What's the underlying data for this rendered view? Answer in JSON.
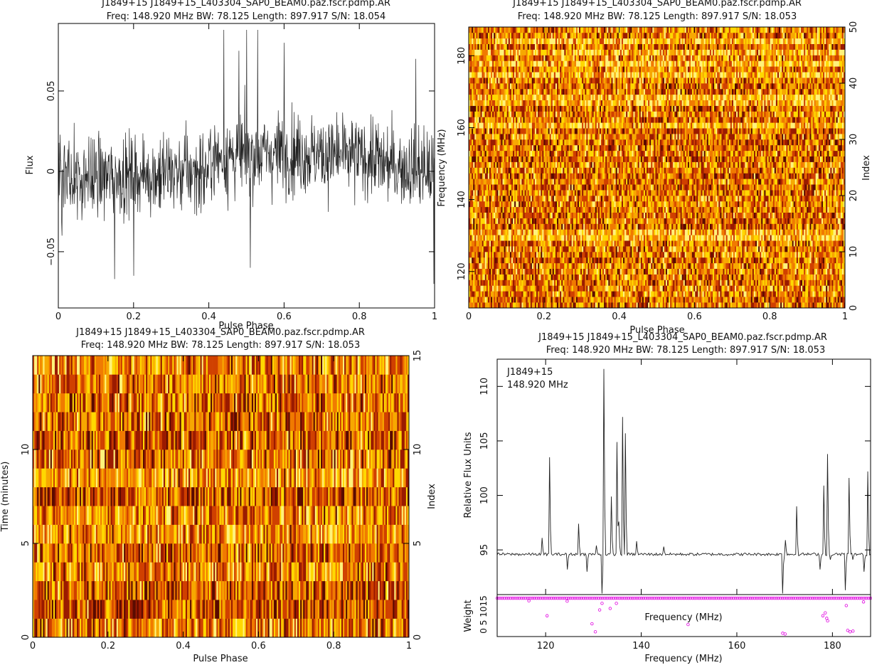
{
  "chart_data": [
    {
      "id": "profile",
      "type": "line",
      "title": "J1849+15 J1849+15_L403304_SAP0_BEAM0.paz.fscr.pdmp.AR",
      "subtitle": "Freq: 148.920 MHz BW: 78.125 Length: 897.917 S/N: 18.054",
      "xlabel": "Pulse Phase",
      "ylabel": "Flux",
      "xlim": [
        0,
        1
      ],
      "ylim": [
        -0.085,
        0.092
      ],
      "xticks": [
        0,
        0.2,
        0.4,
        0.6,
        0.8,
        1
      ],
      "xtick_labels": [
        "0",
        "0.2",
        "0.4",
        "0.6",
        "0.8",
        "1"
      ],
      "yticks": [
        -0.05,
        0,
        0.05
      ],
      "ytick_labels": [
        "−0.05",
        "0",
        "0.05"
      ],
      "series": [
        {
          "n_bins": 1024,
          "baseline_segments": [
            {
              "x": [
                0,
                0.4
              ],
              "y": [
                -0.005,
                0.0
              ]
            },
            {
              "x": [
                0.4,
                0.6
              ],
              "y": [
                0.008,
                0.012
              ]
            },
            {
              "x": [
                0.6,
                0.85
              ],
              "y": [
                0.012,
                0.008
              ]
            },
            {
              "x": [
                0.85,
                1.0
              ],
              "y": [
                0.005,
                0.0
              ]
            }
          ],
          "noise_rms": 0.022,
          "extremes": [
            {
              "x": 0.01,
              "y": -0.04
            },
            {
              "x": 0.15,
              "y": -0.067
            },
            {
              "x": 0.2,
              "y": -0.065
            },
            {
              "x": 0.44,
              "y": 0.088
            },
            {
              "x": 0.48,
              "y": 0.075
            },
            {
              "x": 0.5,
              "y": 0.088
            },
            {
              "x": 0.51,
              "y": -0.06
            },
            {
              "x": 0.53,
              "y": 0.088
            },
            {
              "x": 0.6,
              "y": 0.08
            },
            {
              "x": 0.95,
              "y": 0.07
            },
            {
              "x": 0.998,
              "y": -0.07
            }
          ]
        }
      ]
    },
    {
      "id": "freq-phase",
      "type": "heatmap",
      "title": "J1849+15 J1849+15_L403304_SAP0_BEAM0.paz.fscr.pdmp.AR",
      "subtitle": "Freq: 148.920 MHz BW: 78.125 Length: 897.917 S/N: 18.053",
      "xlabel": "Pulse Phase",
      "ylabel": "Frequency (MHz)",
      "ylabel_right": "Index",
      "xlim": [
        0,
        1
      ],
      "ylim": [
        109.86,
        187.98
      ],
      "ylim_right": [
        0,
        50
      ],
      "xticks": [
        0,
        0.2,
        0.4,
        0.6,
        0.8,
        1
      ],
      "xtick_labels": [
        "0",
        "0.2",
        "0.4",
        "0.6",
        "0.8",
        "1"
      ],
      "yticks": [
        120,
        140,
        160,
        180
      ],
      "ytick_labels": [
        "120",
        "140",
        "160",
        "180"
      ],
      "yticks_right": [
        0,
        10,
        20,
        30,
        40,
        50
      ],
      "ytick_labels_right": [
        "0",
        "10",
        "20",
        "30",
        "40",
        "50"
      ],
      "n_cols": 256,
      "n_rows": 50,
      "colormap": [
        "#5a0a00",
        "#9a1a00",
        "#d04000",
        "#f07a00",
        "#f7a800",
        "#ffd800",
        "#fff27a"
      ],
      "bright_rows": [
        12,
        13,
        32,
        36,
        37,
        41,
        43,
        45,
        47
      ]
    },
    {
      "id": "time-phase",
      "type": "heatmap",
      "title": "J1849+15 J1849+15_L403304_SAP0_BEAM0.paz.fscr.pdmp.AR",
      "subtitle": "Freq: 148.920 MHz BW: 78.125 Length: 897.917 S/N: 18.053",
      "xlabel": "Pulse Phase",
      "ylabel": "Time (minutes)",
      "ylabel_right": "Index",
      "xlim": [
        0,
        1
      ],
      "ylim": [
        0,
        15
      ],
      "ylim_right": [
        0,
        15
      ],
      "xticks": [
        0,
        0.2,
        0.4,
        0.6,
        0.8,
        1
      ],
      "xtick_labels": [
        "0",
        "0.2",
        "0.4",
        "0.6",
        "0.8",
        "1"
      ],
      "yticks": [
        0,
        5,
        10
      ],
      "ytick_labels": [
        "0",
        "5",
        "10"
      ],
      "yticks_right": [
        0,
        5,
        10,
        15
      ],
      "ytick_labels_right": [
        "0",
        "5",
        "10",
        "15"
      ],
      "n_cols": 256,
      "n_rows": 15,
      "colormap": [
        "#5a0a00",
        "#9a1a00",
        "#d04000",
        "#f07a00",
        "#f7a800",
        "#ffd800",
        "#fff27a"
      ]
    },
    {
      "id": "bandpass",
      "type": "line",
      "title": "J1849+15 J1849+15_L403304_SAP0_BEAM0.paz.fscr.pdmp.AR",
      "subtitle": "Freq: 148.920 MHz BW: 78.125 Length: 897.917 S/N: 18.053",
      "annotations": [
        "J1849+15",
        "148.920 MHz"
      ],
      "xlabel": "Frequency (MHz)",
      "ylabel": "Relative Flux Units",
      "xlim": [
        109.86,
        187.98
      ],
      "ylim": [
        90.9,
        112.5
      ],
      "xticks": [
        120,
        140,
        160,
        180
      ],
      "xtick_labels": [
        "120",
        "140",
        "160",
        "180"
      ],
      "yticks": [
        95,
        100,
        105,
        110
      ],
      "ytick_labels": [
        "95",
        "100",
        "105",
        "110"
      ],
      "series": [
        {
          "baseline": 94.6,
          "spikes": [
            {
              "x": 119.2,
              "y": 96.1
            },
            {
              "x": 120.8,
              "y": 103.5
            },
            {
              "x": 124.5,
              "y": 93.2
            },
            {
              "x": 126.8,
              "y": 97.4
            },
            {
              "x": 128.6,
              "y": 93.0
            },
            {
              "x": 130.7,
              "y": 95.4
            },
            {
              "x": 131.8,
              "y": 91.0
            },
            {
              "x": 132.1,
              "y": 111.6
            },
            {
              "x": 133.8,
              "y": 99.9
            },
            {
              "x": 134.9,
              "y": 104.9
            },
            {
              "x": 135.4,
              "y": 97.6
            },
            {
              "x": 136.1,
              "y": 107.2
            },
            {
              "x": 136.7,
              "y": 105.7
            },
            {
              "x": 139.0,
              "y": 95.8
            },
            {
              "x": 144.8,
              "y": 95.3
            },
            {
              "x": 169.6,
              "y": 91.0
            },
            {
              "x": 170.1,
              "y": 95.9
            },
            {
              "x": 172.6,
              "y": 99.0
            },
            {
              "x": 177.4,
              "y": 93.2
            },
            {
              "x": 178.2,
              "y": 100.9
            },
            {
              "x": 178.9,
              "y": 103.8
            },
            {
              "x": 179.5,
              "y": 94.1
            },
            {
              "x": 182.7,
              "y": 91.3
            },
            {
              "x": 183.4,
              "y": 101.6
            },
            {
              "x": 184.3,
              "y": 94.1
            },
            {
              "x": 186.6,
              "y": 93.0
            },
            {
              "x": 187.4,
              "y": 102.2
            }
          ]
        }
      ]
    },
    {
      "id": "weights",
      "type": "scatter",
      "xlabel": "Frequency (MHz)",
      "ylabel": "Weight",
      "xlim": [
        109.86,
        187.98
      ],
      "ylim": [
        -0.05,
        1.1
      ],
      "ytick_labels_text": "0 5 1015",
      "series": [
        {
          "color": "#e000e0",
          "default_weight": 1.0,
          "low_points": [
            {
              "x": 116.5,
              "y": 0.93
            },
            {
              "x": 120.3,
              "y": 0.52
            },
            {
              "x": 124.5,
              "y": 0.92
            },
            {
              "x": 129.7,
              "y": 0.3
            },
            {
              "x": 130.4,
              "y": 0.08
            },
            {
              "x": 131.3,
              "y": 0.68
            },
            {
              "x": 131.8,
              "y": 0.86
            },
            {
              "x": 133.5,
              "y": 0.72
            },
            {
              "x": 134.8,
              "y": 0.86
            },
            {
              "x": 149.8,
              "y": 0.28
            },
            {
              "x": 169.6,
              "y": 0.04
            },
            {
              "x": 170.1,
              "y": 0.02
            },
            {
              "x": 178.0,
              "y": 0.52
            },
            {
              "x": 178.5,
              "y": 0.6
            },
            {
              "x": 179.0,
              "y": 0.38
            },
            {
              "x": 178.8,
              "y": 0.45
            },
            {
              "x": 183.2,
              "y": 0.12
            },
            {
              "x": 183.7,
              "y": 0.08
            },
            {
              "x": 184.3,
              "y": 0.1
            },
            {
              "x": 182.9,
              "y": 0.8
            },
            {
              "x": 186.5,
              "y": 0.9
            }
          ]
        }
      ]
    }
  ]
}
